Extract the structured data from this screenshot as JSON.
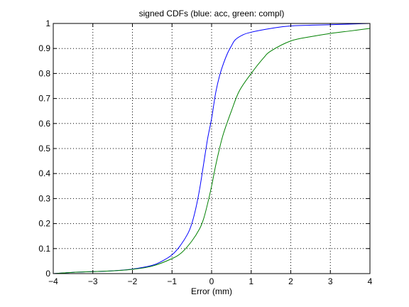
{
  "chart_data": {
    "type": "line",
    "title": "signed CDFs (blue: acc, green: compl)",
    "xlabel": "Error (mm)",
    "ylabel": "",
    "xlim": [
      -4,
      4
    ],
    "ylim": [
      0,
      1
    ],
    "grid": true,
    "x_ticks": [
      -4,
      -3,
      -2,
      -1,
      0,
      1,
      2,
      3,
      4
    ],
    "y_ticks": [
      0,
      0.1,
      0.2,
      0.3,
      0.4,
      0.5,
      0.6,
      0.7,
      0.8,
      0.9,
      1
    ],
    "x_tick_labels": [
      "−4",
      "−3",
      "−2",
      "−1",
      "0",
      "1",
      "2",
      "3",
      "4"
    ],
    "y_tick_labels": [
      "0",
      "0.1",
      "0.2",
      "0.3",
      "0.4",
      "0.5",
      "0.6",
      "0.7",
      "0.8",
      "0.9",
      "1"
    ],
    "series": [
      {
        "color": "#0000ff",
        "x": [
          -4.0,
          -3.5,
          -3.0,
          -2.5,
          -2.0,
          -1.5,
          -1.25,
          -1.0,
          -0.8,
          -0.6,
          -0.5,
          -0.4,
          -0.3,
          -0.2,
          -0.1,
          0.0,
          0.1,
          0.2,
          0.3,
          0.4,
          0.5,
          0.6,
          0.8,
          1.0,
          1.5,
          2.0,
          3.0,
          4.0
        ],
        "y": [
          0.0,
          0.005,
          0.008,
          0.011,
          0.018,
          0.033,
          0.05,
          0.075,
          0.11,
          0.16,
          0.2,
          0.26,
          0.34,
          0.44,
          0.54,
          0.62,
          0.72,
          0.79,
          0.84,
          0.88,
          0.91,
          0.935,
          0.955,
          0.965,
          0.98,
          0.99,
          0.995,
          1.0
        ]
      },
      {
        "color": "#008000",
        "x": [
          -4.0,
          -3.5,
          -3.0,
          -2.5,
          -2.0,
          -1.5,
          -1.0,
          -0.75,
          -0.5,
          -0.3,
          -0.2,
          -0.1,
          0.0,
          0.1,
          0.2,
          0.3,
          0.5,
          0.7,
          1.0,
          1.3,
          1.5,
          2.0,
          2.5,
          3.0,
          3.5,
          4.0
        ],
        "y": [
          0.0,
          0.005,
          0.008,
          0.011,
          0.017,
          0.03,
          0.06,
          0.085,
          0.13,
          0.18,
          0.22,
          0.28,
          0.35,
          0.43,
          0.5,
          0.56,
          0.65,
          0.73,
          0.8,
          0.86,
          0.89,
          0.93,
          0.947,
          0.96,
          0.97,
          0.98
        ]
      }
    ]
  }
}
